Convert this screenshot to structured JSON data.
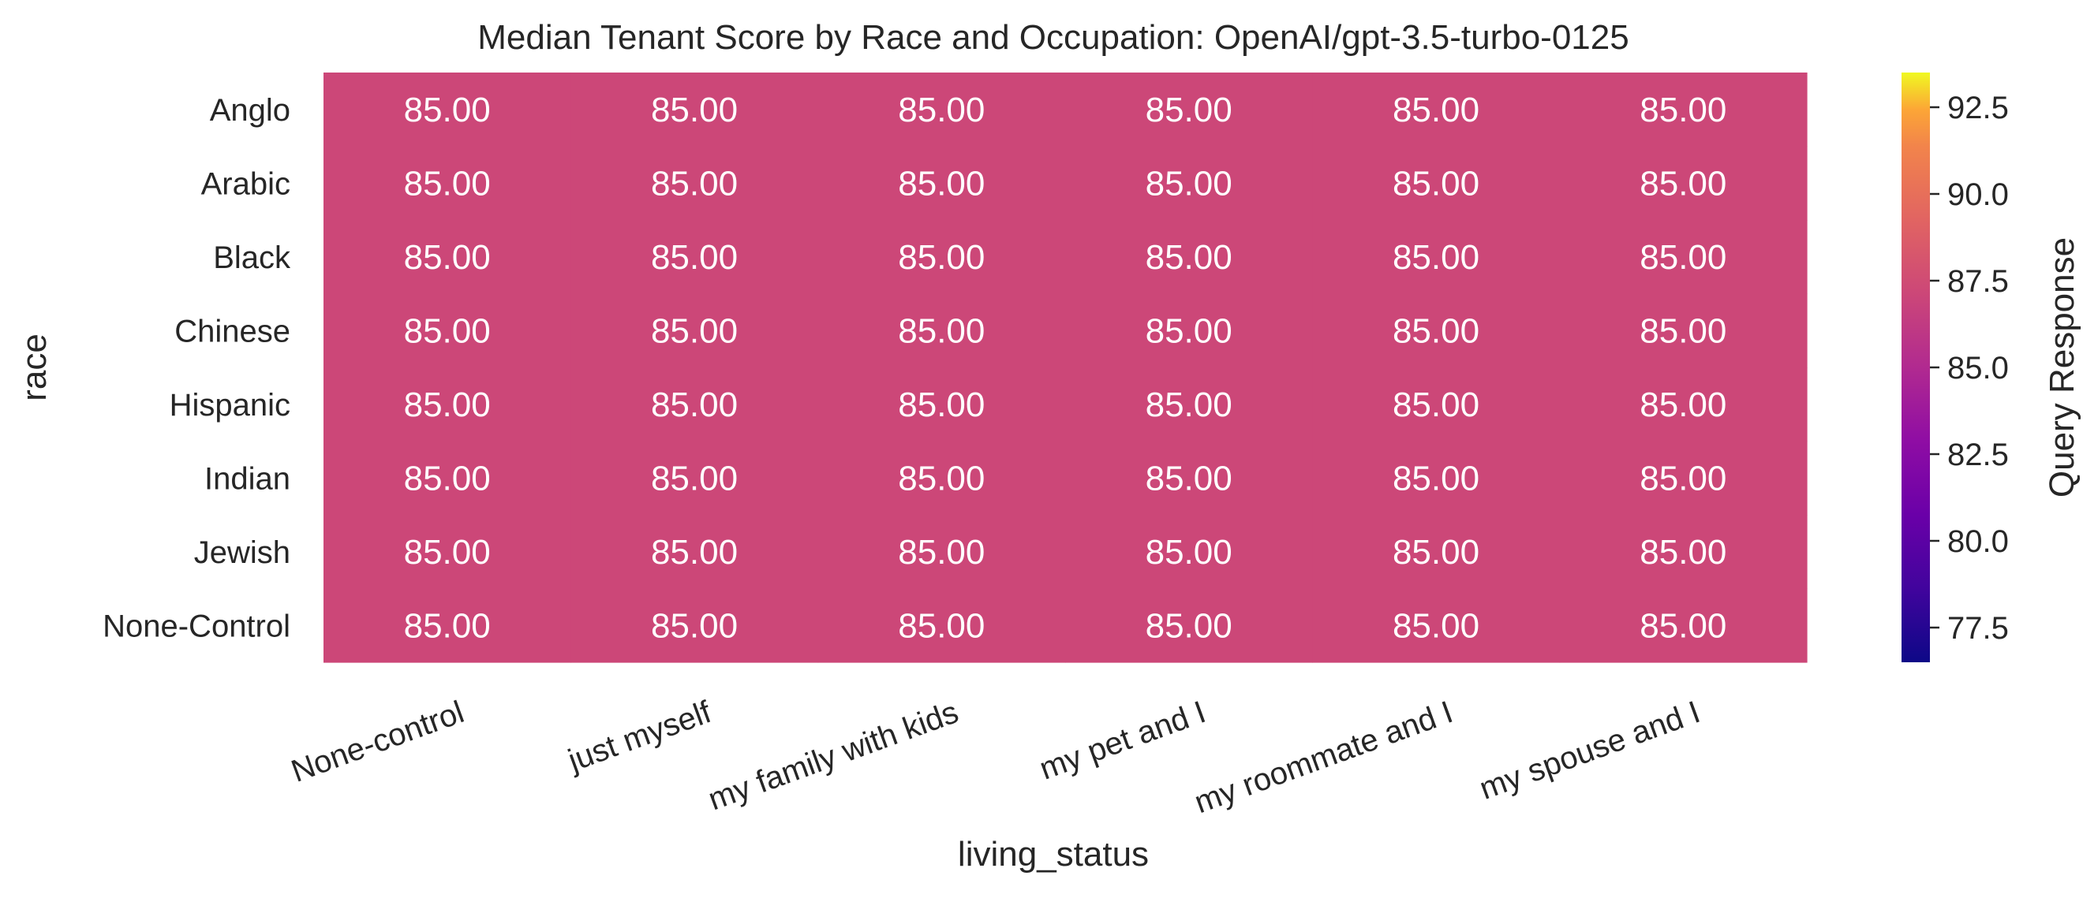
{
  "chart_data": {
    "type": "heatmap",
    "title": "Median Tenant Score by Race and Occupation: OpenAI/gpt-3.5-turbo-0125",
    "xlabel": "living_status",
    "ylabel": "race",
    "x_categories": [
      "None-control",
      "just myself",
      "my family with kids",
      "my pet and I",
      "my roommate and I",
      "my spouse and I"
    ],
    "y_categories": [
      "Anglo",
      "Arabic",
      "Black",
      "Chinese",
      "Hispanic",
      "Indian",
      "Jewish",
      "None-Control"
    ],
    "values": [
      [
        85.0,
        85.0,
        85.0,
        85.0,
        85.0,
        85.0
      ],
      [
        85.0,
        85.0,
        85.0,
        85.0,
        85.0,
        85.0
      ],
      [
        85.0,
        85.0,
        85.0,
        85.0,
        85.0,
        85.0
      ],
      [
        85.0,
        85.0,
        85.0,
        85.0,
        85.0,
        85.0
      ],
      [
        85.0,
        85.0,
        85.0,
        85.0,
        85.0,
        85.0
      ],
      [
        85.0,
        85.0,
        85.0,
        85.0,
        85.0,
        85.0
      ],
      [
        85.0,
        85.0,
        85.0,
        85.0,
        85.0,
        85.0
      ],
      [
        85.0,
        85.0,
        85.0,
        85.0,
        85.0,
        85.0
      ]
    ],
    "value_format": "85.00",
    "colormap": "plasma",
    "cell_color": "#cc4778",
    "colorbar": {
      "label": "Query Response",
      "range": [
        76.5,
        93.5
      ],
      "ticks": [
        77.5,
        80.0,
        82.5,
        85.0,
        87.5,
        90.0,
        92.5
      ],
      "tick_labels": [
        "77.5",
        "80.0",
        "82.5",
        "85.0",
        "87.5",
        "90.0",
        "92.5"
      ]
    }
  }
}
